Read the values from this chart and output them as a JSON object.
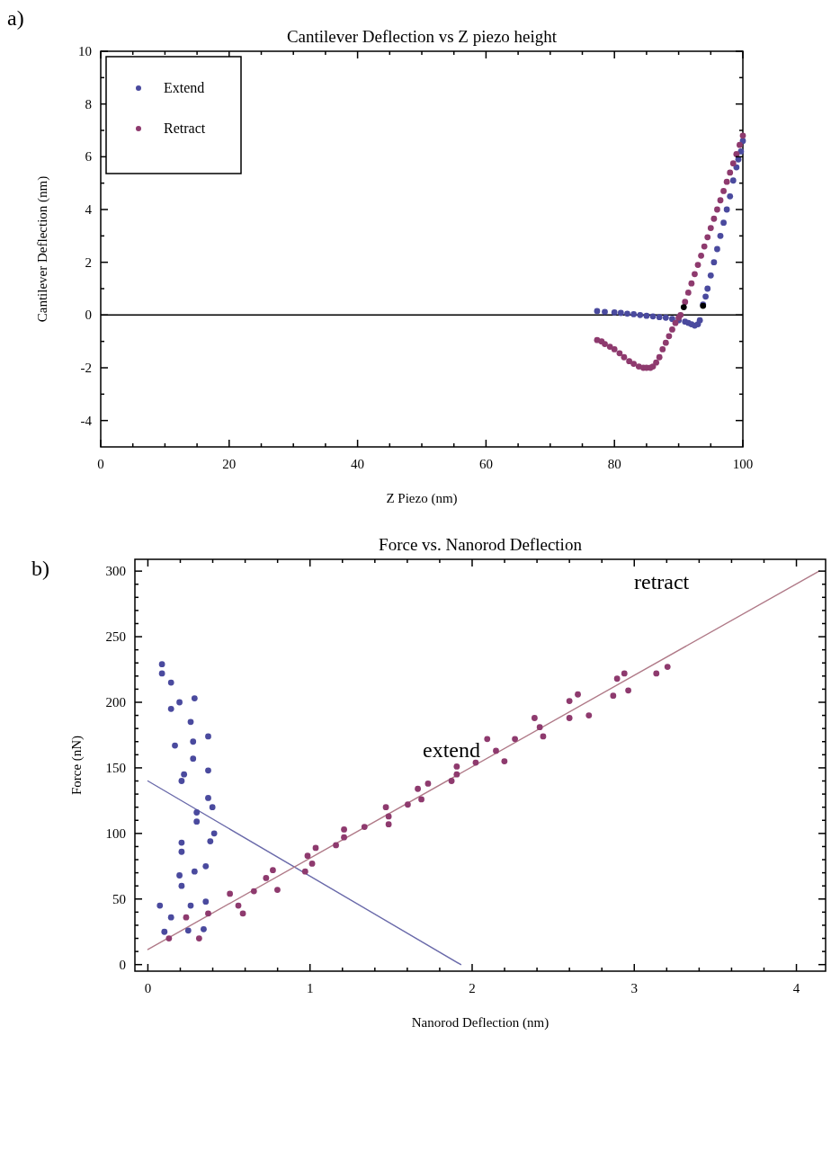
{
  "chart_data": [
    {
      "type": "scatter",
      "title": "Cantilever Deflection vs Z piezo height",
      "xlabel": "Z Piezo (nm)",
      "ylabel": "Cantilever Deflection (nm)",
      "annotations": [
        "a)"
      ],
      "xlim": [
        0,
        100
      ],
      "ylim": [
        -5,
        10
      ],
      "xticks": [
        0,
        {
          "value": 5,
          "label": null
        },
        {
          "value": 10,
          "label": null
        },
        {
          "value": 15,
          "label": null
        },
        20,
        {
          "value": 25,
          "label": null
        },
        {
          "value": 30,
          "label": null
        },
        {
          "value": 35,
          "label": null
        },
        40,
        {
          "value": 45,
          "label": null
        },
        {
          "value": 50,
          "label": null
        },
        {
          "value": 55,
          "label": null
        },
        60,
        {
          "value": 65,
          "label": null
        },
        {
          "value": 70,
          "label": null
        },
        {
          "value": 75,
          "label": null
        },
        80,
        {
          "value": 85,
          "label": null
        },
        {
          "value": 90,
          "label": null
        },
        {
          "value": 95,
          "label": null
        },
        100
      ],
      "yticks": [
        -4,
        {
          "value": -3,
          "label": null
        },
        -2,
        {
          "value": -1,
          "label": null
        },
        0,
        {
          "value": 1,
          "label": null
        },
        2,
        {
          "value": 3,
          "label": null
        },
        4,
        {
          "value": 5,
          "label": null
        },
        6,
        {
          "value": 7,
          "label": null
        },
        8,
        {
          "value": 9,
          "label": null
        },
        10
      ],
      "legend": "top left",
      "grid": false,
      "ref_lines": [
        {
          "axis": "y",
          "value": 0,
          "color": "#000000"
        }
      ],
      "series": [
        {
          "name": "Extend",
          "marker": "circle",
          "color": "#4a4a9e",
          "x": [
            77.3,
            78.5,
            80,
            81,
            82,
            83,
            84,
            85,
            86,
            87,
            88,
            89,
            90,
            91,
            91.5,
            92,
            92.5,
            93,
            93.3,
            93.8,
            94.2,
            94.5,
            95,
            95.5,
            96,
            96.5,
            97,
            97.5,
            98,
            98.5,
            99,
            99.3,
            99.7,
            100
          ],
          "values": [
            0.15,
            0.12,
            0.1,
            0.08,
            0.05,
            0.03,
            0,
            -0.03,
            -0.05,
            -0.08,
            -0.1,
            -0.15,
            -0.2,
            -0.25,
            -0.3,
            -0.35,
            -0.4,
            -0.35,
            -0.2,
            0.4,
            0.7,
            1,
            1.5,
            2,
            2.5,
            3,
            3.5,
            4,
            4.5,
            5.1,
            5.6,
            5.9,
            6.2,
            6.6
          ]
        },
        {
          "name": "Retract",
          "marker": "circle",
          "color": "#8e3a6e",
          "x": [
            77.3,
            78,
            78.5,
            79.3,
            80,
            80.8,
            81.5,
            82.3,
            83,
            83.8,
            84.5,
            85,
            85.6,
            86,
            86.5,
            87,
            87.5,
            88,
            88.5,
            89,
            89.5,
            90,
            90.3,
            91,
            91.5,
            92,
            92.5,
            93,
            93.5,
            94,
            94.5,
            95,
            95.5,
            96,
            96.5,
            97,
            97.5,
            98,
            98.5,
            99,
            99.5,
            100
          ],
          "values": [
            -0.95,
            -1,
            -1.1,
            -1.2,
            -1.3,
            -1.45,
            -1.6,
            -1.75,
            -1.85,
            -1.95,
            -2,
            -2,
            -2,
            -1.95,
            -1.8,
            -1.6,
            -1.3,
            -1.05,
            -0.8,
            -0.55,
            -0.3,
            -0.1,
            0,
            0.5,
            0.85,
            1.2,
            1.55,
            1.9,
            2.25,
            2.6,
            2.95,
            3.3,
            3.65,
            4,
            4.35,
            4.7,
            5.05,
            5.4,
            5.75,
            6.1,
            6.45,
            6.8
          ]
        },
        {
          "marker": "circle",
          "color": "#000000",
          "x": [
            90.8,
            93.8
          ],
          "values": [
            0.3,
            0.35
          ]
        }
      ]
    },
    {
      "type": "scatter",
      "title": "Force vs. Nanorod Deflection",
      "xlabel": "Nanorod Deflection (nm)",
      "ylabel": "Force (nN)",
      "annotations": [
        "b)",
        "retract",
        "extend"
      ],
      "xlim": [
        -0.08,
        4.18
      ],
      "ylim": [
        -5,
        309
      ],
      "xticks": [
        0,
        {
          "value": 0.2,
          "label": null
        },
        {
          "value": 0.4,
          "label": null
        },
        {
          "value": 0.6,
          "label": null
        },
        {
          "value": 0.8,
          "label": null
        },
        1,
        {
          "value": 1.2,
          "label": null
        },
        {
          "value": 1.4,
          "label": null
        },
        {
          "value": 1.6,
          "label": null
        },
        {
          "value": 1.8,
          "label": null
        },
        2,
        {
          "value": 2.2,
          "label": null
        },
        {
          "value": 2.4,
          "label": null
        },
        {
          "value": 2.6,
          "label": null
        },
        {
          "value": 2.8,
          "label": null
        },
        3,
        {
          "value": 3.2,
          "label": null
        },
        {
          "value": 3.4,
          "label": null
        },
        {
          "value": 3.6,
          "label": null
        },
        {
          "value": 3.8,
          "label": null
        },
        4
      ],
      "yticks": [
        0,
        {
          "value": 10,
          "label": null
        },
        {
          "value": 20,
          "label": null
        },
        {
          "value": 30,
          "label": null
        },
        {
          "value": 40,
          "label": null
        },
        50,
        {
          "value": 60,
          "label": null
        },
        {
          "value": 70,
          "label": null
        },
        {
          "value": 80,
          "label": null
        },
        {
          "value": 90,
          "label": null
        },
        100,
        {
          "value": 110,
          "label": null
        },
        {
          "value": 120,
          "label": null
        },
        {
          "value": 130,
          "label": null
        },
        {
          "value": 140,
          "label": null
        },
        150,
        {
          "value": 160,
          "label": null
        },
        {
          "value": 170,
          "label": null
        },
        {
          "value": 180,
          "label": null
        },
        {
          "value": 190,
          "label": null
        },
        200,
        {
          "value": 210,
          "label": null
        },
        {
          "value": 220,
          "label": null
        },
        {
          "value": 230,
          "label": null
        },
        {
          "value": 240,
          "label": null
        },
        250,
        {
          "value": 260,
          "label": null
        },
        {
          "value": 270,
          "label": null
        },
        {
          "value": 280,
          "label": null
        },
        {
          "value": 290,
          "label": null
        },
        300
      ],
      "grid": false,
      "series": [
        {
          "marker": "circle",
          "color": "#4a4a9e",
          "x": [
            0.087,
            0.087,
            0.143,
            0.195,
            0.288,
            0.143,
            0.264,
            0.372,
            0.167,
            0.279,
            0.279,
            0.372,
            0.223,
            0.208,
            0.372,
            0.398,
            0.301,
            0.301,
            0.409,
            0.385,
            0.208,
            0.208,
            0.288,
            0.357,
            0.195,
            0.208,
            0.074,
            0.264,
            0.357,
            0.143,
            0.102,
            0.249,
            0.344
          ],
          "values": [
            229,
            222,
            215,
            200,
            203,
            195,
            185,
            174,
            167,
            170,
            157,
            148,
            145,
            140,
            127,
            120,
            116,
            109,
            100,
            94,
            93,
            86,
            71,
            75,
            68,
            60,
            45,
            45,
            48,
            36,
            25,
            26,
            27
          ]
        },
        {
          "marker": "circle",
          "color": "#8e3a6e",
          "x": [
            0.13,
            0.236,
            0.316,
            0.372,
            0.506,
            0.558,
            0.586,
            0.654,
            0.729,
            0.771,
            0.799,
            0.97,
            0.985,
            1.013,
            1.035,
            1.16,
            1.21,
            1.21,
            1.336,
            1.468,
            1.485,
            1.485,
            1.603,
            1.687,
            1.665,
            1.728,
            1.873,
            1.905,
            1.905,
            2.022,
            2.147,
            2.093,
            2.199,
            2.264,
            2.385,
            2.417,
            2.438,
            2.6,
            2.6,
            2.652,
            2.72,
            2.87,
            2.894,
            2.939,
            2.963,
            3.136,
            3.205
          ],
          "values": [
            20,
            36,
            20,
            39,
            54,
            45,
            39,
            56,
            66,
            72,
            57,
            71,
            83,
            77,
            89,
            91,
            97,
            103,
            105,
            120,
            113,
            107,
            122,
            126,
            134,
            138,
            140,
            145,
            151,
            154,
            163,
            172,
            155,
            172,
            188,
            181,
            174,
            201,
            188,
            206,
            190,
            205,
            218,
            222,
            209,
            222,
            227
          ]
        },
        {
          "type": "line",
          "color": "#6a6aaa",
          "x": [
            0,
            1.93
          ],
          "values": [
            140,
            0
          ]
        },
        {
          "type": "line",
          "color": "#b07a88",
          "x": [
            0,
            4.14
          ],
          "values": [
            11.5,
            300
          ]
        }
      ]
    }
  ]
}
